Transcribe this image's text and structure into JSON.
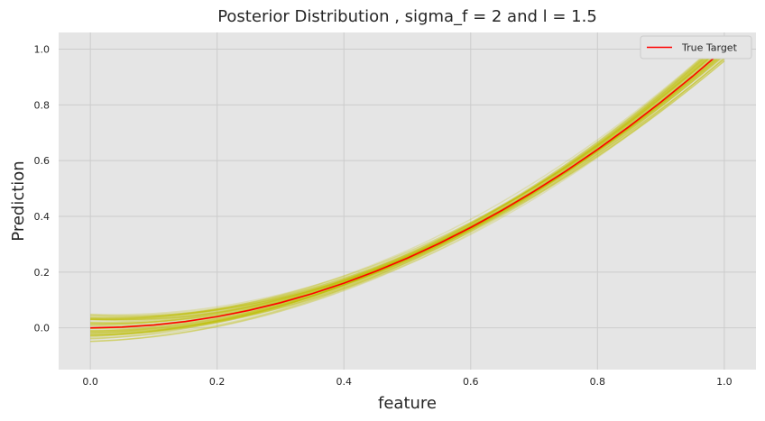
{
  "chart_data": {
    "type": "line",
    "title": "Posterior Distribution , sigma_f = 2 and l = 1.5",
    "xlabel": "feature",
    "ylabel": "Prediction",
    "xlim": [
      -0.05,
      1.05
    ],
    "ylim": [
      -0.15,
      1.06
    ],
    "xticks": [
      0.0,
      0.2,
      0.4,
      0.6,
      0.8,
      1.0
    ],
    "yticks": [
      0.0,
      0.2,
      0.4,
      0.6,
      0.8,
      1.0
    ],
    "xtick_labels": [
      "0.0",
      "0.2",
      "0.4",
      "0.6",
      "0.8",
      "1.0"
    ],
    "ytick_labels": [
      "0.0",
      "0.2",
      "0.4",
      "0.6",
      "0.8",
      "1.0"
    ],
    "grid": true,
    "background": "#e5e5e5",
    "legend": {
      "position": "top-right",
      "entries": [
        "True Target"
      ]
    },
    "series": [
      {
        "name": "True Target",
        "color": "#ff0000",
        "x": [
          0.0,
          0.05,
          0.1,
          0.15,
          0.2,
          0.25,
          0.3,
          0.35,
          0.4,
          0.45,
          0.5,
          0.55,
          0.6,
          0.65,
          0.7,
          0.75,
          0.8,
          0.85,
          0.9,
          0.95,
          1.0
        ],
        "y": [
          0.0,
          0.0025,
          0.01,
          0.0225,
          0.04,
          0.0625,
          0.09,
          0.1225,
          0.16,
          0.2025,
          0.25,
          0.3025,
          0.36,
          0.4225,
          0.49,
          0.5625,
          0.64,
          0.7225,
          0.81,
          0.9025,
          1.0
        ]
      }
    ],
    "posterior_samples": {
      "color": "#c0c000",
      "count": 60,
      "spread_at_x0": 0.09,
      "spread_mid": 0.015,
      "spread_at_x1": 0.08
    }
  }
}
